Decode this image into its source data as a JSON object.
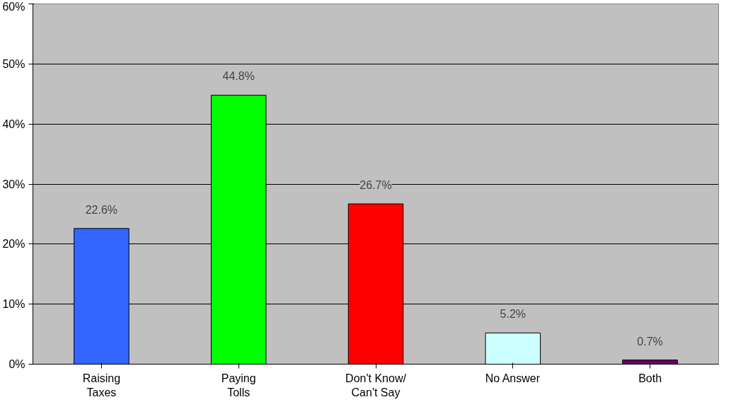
{
  "chart_data": {
    "type": "bar",
    "categories": [
      "Raising\nTaxes",
      "Paying\nTolls",
      "Don't Know/\nCan't Say",
      "No Answer",
      "Both"
    ],
    "values": [
      22.6,
      44.8,
      26.7,
      5.2,
      0.7
    ],
    "colors": [
      "#3366ff",
      "#00ff00",
      "#ff0000",
      "#ccffff",
      "#660066"
    ],
    "value_labels": [
      "22.6%",
      "44.8%",
      "26.7%",
      "5.2%",
      "0.7%"
    ],
    "ylim": [
      0,
      60
    ],
    "yticks": [
      {
        "value": 0,
        "label": "0%"
      },
      {
        "value": 10,
        "label": "10%"
      },
      {
        "value": 20,
        "label": "20%"
      },
      {
        "value": 30,
        "label": "30%"
      },
      {
        "value": 40,
        "label": "40%"
      },
      {
        "value": 50,
        "label": "50%"
      },
      {
        "value": 60,
        "label": "60%"
      }
    ],
    "grid": "y"
  }
}
